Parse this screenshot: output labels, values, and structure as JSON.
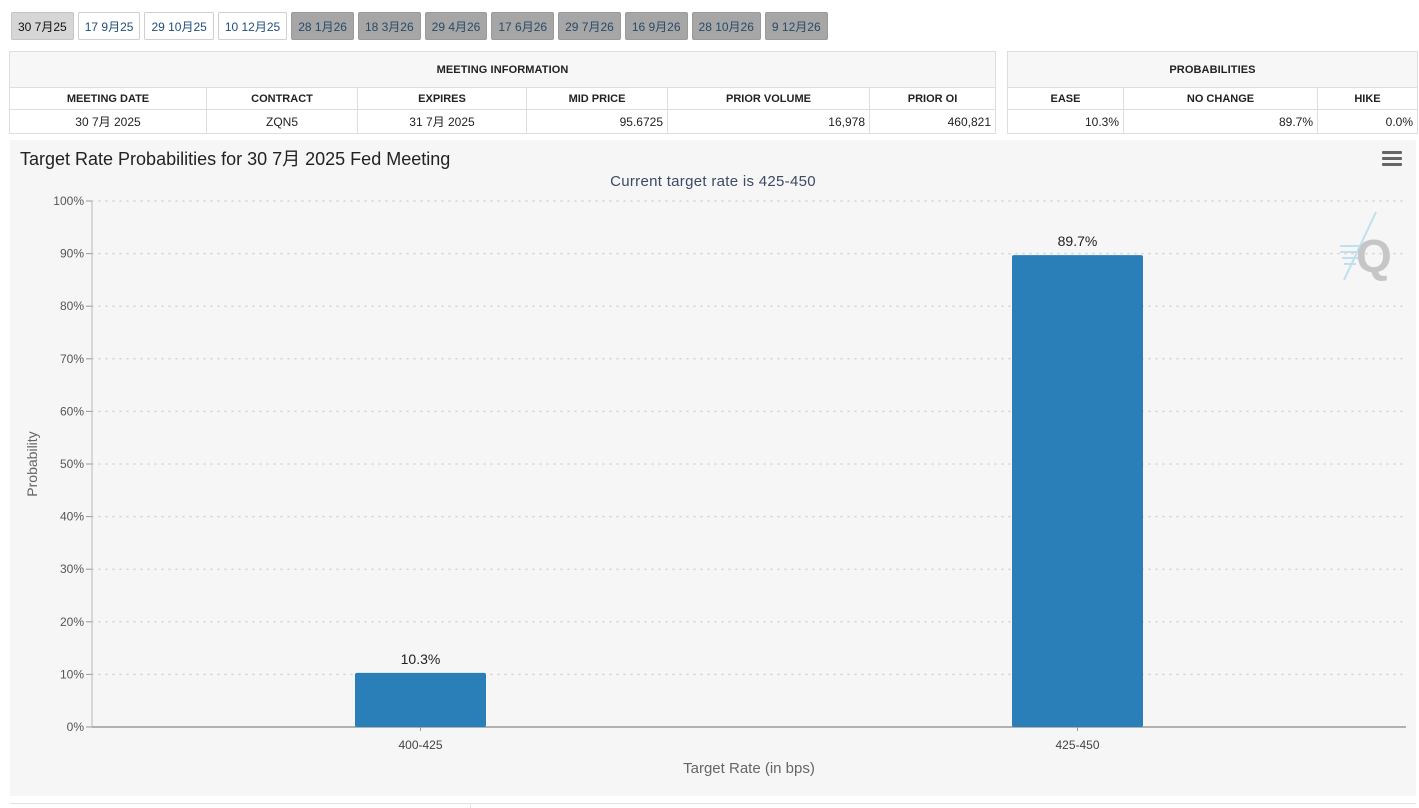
{
  "tabs": [
    {
      "label": "30 7月25",
      "state": "selected"
    },
    {
      "label": "17 9月25",
      "state": "normal"
    },
    {
      "label": "29 10月25",
      "state": "normal"
    },
    {
      "label": "10 12月25",
      "state": "normal"
    },
    {
      "label": "28 1月26",
      "state": "disabled"
    },
    {
      "label": "18 3月26",
      "state": "disabled"
    },
    {
      "label": "29 4月26",
      "state": "disabled"
    },
    {
      "label": "17 6月26",
      "state": "disabled"
    },
    {
      "label": "29 7月26",
      "state": "disabled"
    },
    {
      "label": "16 9月26",
      "state": "disabled"
    },
    {
      "label": "28 10月26",
      "state": "disabled"
    },
    {
      "label": "9 12月26",
      "state": "disabled"
    }
  ],
  "meeting_info": {
    "header": "MEETING INFORMATION",
    "columns": [
      "MEETING DATE",
      "CONTRACT",
      "EXPIRES",
      "MID PRICE",
      "PRIOR VOLUME",
      "PRIOR OI"
    ],
    "row": [
      "30 7月 2025",
      "ZQN5",
      "31 7月 2025",
      "95.6725",
      "16,978",
      "460,821"
    ]
  },
  "probabilities": {
    "header": "PROBABILITIES",
    "columns": [
      "EASE",
      "NO CHANGE",
      "HIKE"
    ],
    "row": [
      "10.3%",
      "89.7%",
      "0.0%"
    ]
  },
  "chart": {
    "menu_icon": "hamburger-menu-icon",
    "watermark_icon": "q-logo-icon"
  },
  "colors": {
    "bar": "#2a7fb8",
    "panel": "#f6f6f6",
    "grid": "#d4d4d4",
    "tab_disabled": "#a6a6a6"
  },
  "chart_data": {
    "type": "bar",
    "title": "Target Rate Probabilities for 30 7月 2025 Fed Meeting",
    "subtitle": "Current target rate is 425-450",
    "categories": [
      "400-425",
      "425-450"
    ],
    "values": [
      10.3,
      89.7
    ],
    "data_labels": [
      "10.3%",
      "89.7%"
    ],
    "xlabel": "Target Rate (in bps)",
    "ylabel": "Probability",
    "ylim": [
      0,
      100
    ],
    "yticks": [
      0,
      10,
      20,
      30,
      40,
      50,
      60,
      70,
      80,
      90,
      100
    ],
    "ytick_labels": [
      "0%",
      "10%",
      "20%",
      "30%",
      "40%",
      "50%",
      "60%",
      "70%",
      "80%",
      "90%",
      "100%"
    ],
    "grid": true,
    "legend": "none"
  }
}
